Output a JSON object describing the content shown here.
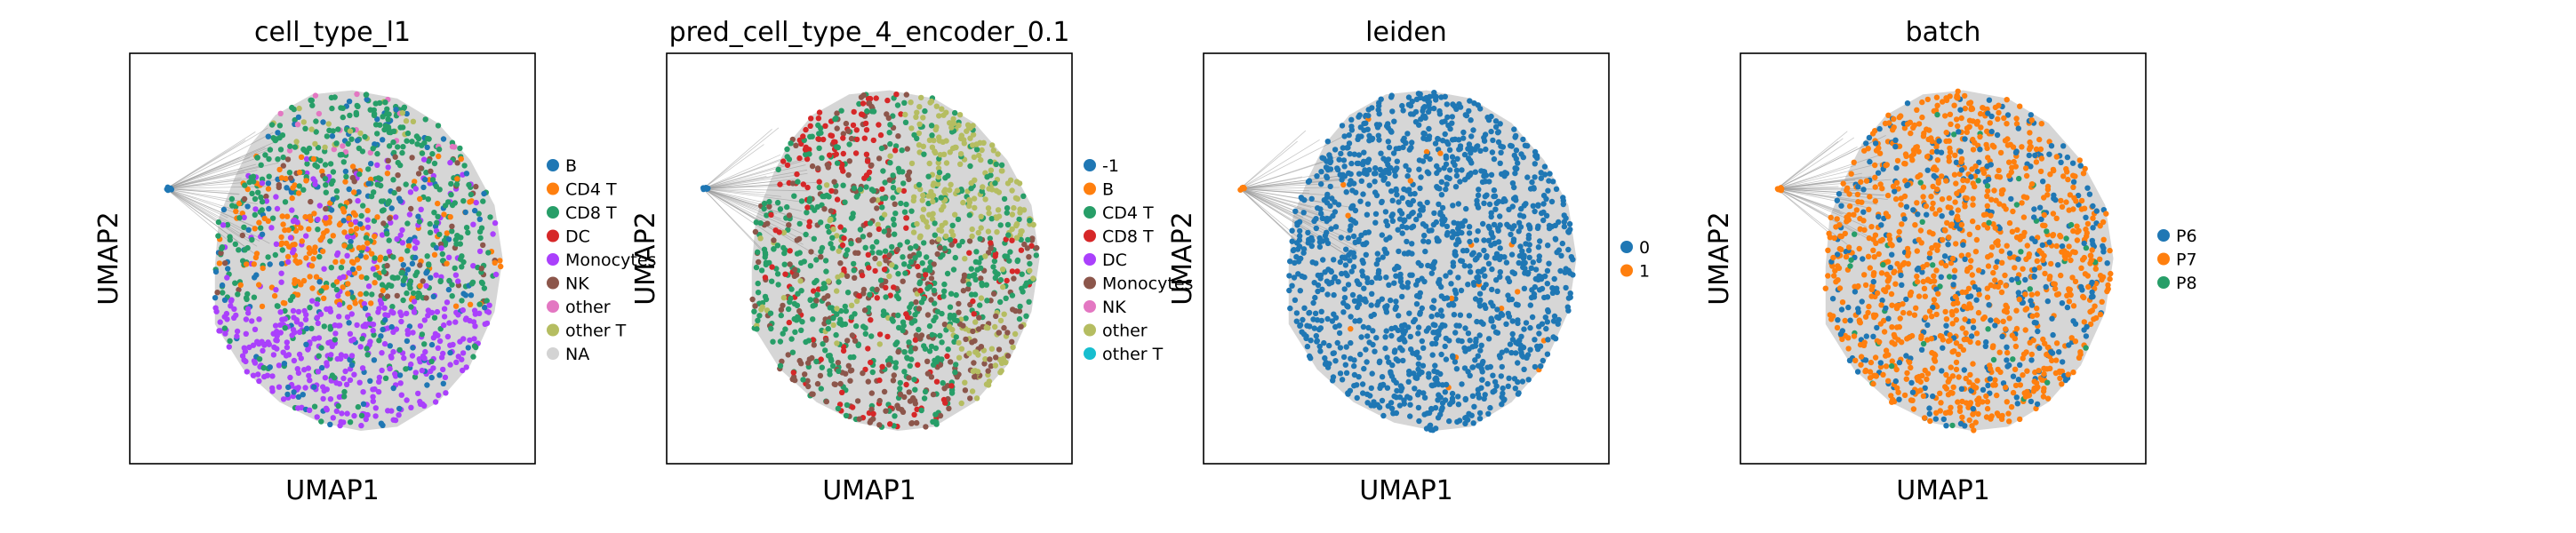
{
  "chart_data": [
    {
      "type": "scatter",
      "title": "cell_type_l1",
      "xlabel": "UMAP1",
      "ylabel": "UMAP2",
      "grid": false,
      "legend_placement": "right",
      "legend": [
        {
          "label": "B",
          "color": "#1f77b4"
        },
        {
          "label": "CD4 T",
          "color": "#ff7f0e"
        },
        {
          "label": "CD8 T",
          "color": "#279e68"
        },
        {
          "label": "DC",
          "color": "#d62728"
        },
        {
          "label": "Monocytes",
          "color": "#aa40fc"
        },
        {
          "label": "NK",
          "color": "#8c564b"
        },
        {
          "label": "other",
          "color": "#e377c2"
        },
        {
          "label": "other T",
          "color": "#b5bd61"
        },
        {
          "label": "NA",
          "color": "#d3d3d3"
        }
      ]
    },
    {
      "type": "scatter",
      "title": "pred_cell_type_4_encoder_0.1",
      "xlabel": "UMAP1",
      "ylabel": "UMAP2",
      "grid": false,
      "legend_placement": "right",
      "legend": [
        {
          "label": "-1",
          "color": "#1f77b4"
        },
        {
          "label": "B",
          "color": "#ff7f0e"
        },
        {
          "label": "CD4 T",
          "color": "#279e68"
        },
        {
          "label": "CD8 T",
          "color": "#d62728"
        },
        {
          "label": "DC",
          "color": "#aa40fc"
        },
        {
          "label": "Monocytes",
          "color": "#8c564b"
        },
        {
          "label": "NK",
          "color": "#e377c2"
        },
        {
          "label": "other",
          "color": "#b5bd61"
        },
        {
          "label": "other T",
          "color": "#17becf"
        }
      ]
    },
    {
      "type": "scatter",
      "title": "leiden",
      "xlabel": "UMAP1",
      "ylabel": "UMAP2",
      "grid": false,
      "legend_placement": "right",
      "legend": [
        {
          "label": "0",
          "color": "#1f77b4"
        },
        {
          "label": "1",
          "color": "#ff7f0e"
        }
      ]
    },
    {
      "type": "scatter",
      "title": "batch",
      "xlabel": "UMAP1",
      "ylabel": "UMAP2",
      "grid": false,
      "legend_placement": "right",
      "legend": [
        {
          "label": "P6",
          "color": "#1f77b4"
        },
        {
          "label": "P7",
          "color": "#ff7f0e"
        },
        {
          "label": "P8",
          "color": "#279e68"
        }
      ]
    }
  ]
}
